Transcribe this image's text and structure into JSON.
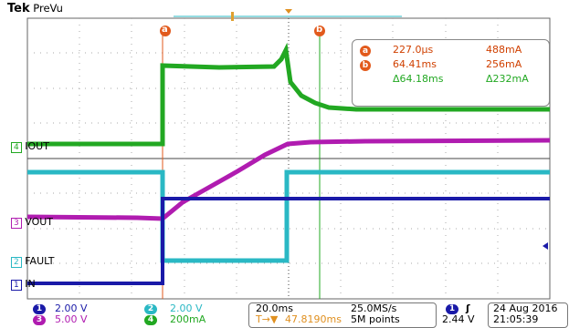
{
  "header": {
    "brand": "Tek",
    "mode": "PreVu"
  },
  "cursor_labels": {
    "a": "a",
    "b": "b"
  },
  "channel_labels": {
    "ch4": "IOUT",
    "ch3": "VOUT",
    "ch2": "FAULT",
    "ch1": "IN"
  },
  "channel_numbers": {
    "ch1": "1",
    "ch2": "2",
    "ch3": "3",
    "ch4": "4"
  },
  "readout": {
    "rows": [
      {
        "icon": "a",
        "time": "227.0µs",
        "value": "488mA"
      },
      {
        "icon": "b",
        "time": "64.41ms",
        "value": "256mA"
      },
      {
        "icon": "",
        "time": "Δ64.18ms",
        "value": "Δ232mA"
      }
    ]
  },
  "settings": {
    "ch1_scale": "2.00 V",
    "ch2_scale": "2.00 V",
    "ch3_scale": "5.00 V",
    "ch4_scale": "200mA",
    "timebase": "20.0ms",
    "sample_rate": "25.0MS/s",
    "trigger_delay": "47.8190ms",
    "record_length": "5M points",
    "trigger_channel": "1",
    "trigger_slope": "ʃ",
    "trigger_level": "2.44 V",
    "date": "24 Aug 2016",
    "time": "21:05:39"
  },
  "colors": {
    "ch1": "#1a1aa8",
    "ch2": "#2ab8c4",
    "ch3": "#b01cb0",
    "ch4": "#22a822",
    "cursor": "#e25a1c"
  }
}
